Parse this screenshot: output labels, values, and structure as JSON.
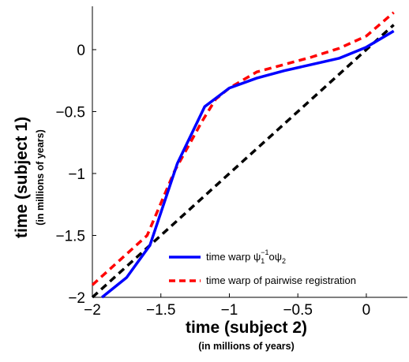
{
  "chart_data": {
    "type": "line",
    "xlabel": "time (subject 2)",
    "xlabel_sub": "(in millions of years)",
    "ylabel": "time (subject 1)",
    "ylabel_sub": "(in millions of years)",
    "xlim": [
      -2,
      0.3
    ],
    "ylim": [
      -2,
      0.35
    ],
    "x_ticks": [
      -2,
      -1.5,
      -1,
      -0.5,
      0
    ],
    "x_tick_labels": [
      "−2",
      "−1.5",
      "−1",
      "−0.5",
      "0"
    ],
    "y_ticks": [
      -2,
      -1.5,
      -1,
      -0.5,
      0
    ],
    "y_tick_labels": [
      "−2",
      "−1.5",
      "−1",
      "−0.5",
      "0"
    ],
    "grid": false,
    "legend_position": "bottom-right",
    "series": [
      {
        "name": "time warp ψ₁⁻¹oψ₂",
        "color": "#0000ff",
        "style": "solid",
        "x": [
          -1.93,
          -1.75,
          -1.58,
          -1.38,
          -1.18,
          -1.0,
          -0.8,
          -0.6,
          -0.4,
          -0.2,
          0.0,
          0.2
        ],
        "y": [
          -2.0,
          -1.84,
          -1.58,
          -0.92,
          -0.46,
          -0.31,
          -0.23,
          -0.17,
          -0.12,
          -0.07,
          0.02,
          0.15
        ]
      },
      {
        "name": "time warp of pairwise registration",
        "color": "#ff0000",
        "style": "dashed",
        "x": [
          -2.0,
          -1.8,
          -1.6,
          -1.4,
          -1.2,
          -1.1,
          -1.0,
          -0.8,
          -0.6,
          -0.4,
          -0.2,
          0.0,
          0.2
        ],
        "y": [
          -1.9,
          -1.7,
          -1.5,
          -0.98,
          -0.58,
          -0.4,
          -0.31,
          -0.18,
          -0.12,
          -0.06,
          0.01,
          0.11,
          0.3
        ]
      },
      {
        "name": "",
        "color": "#000000",
        "style": "dashed",
        "x": [
          -2.0,
          0.2
        ],
        "y": [
          -2.0,
          0.2
        ]
      }
    ]
  }
}
